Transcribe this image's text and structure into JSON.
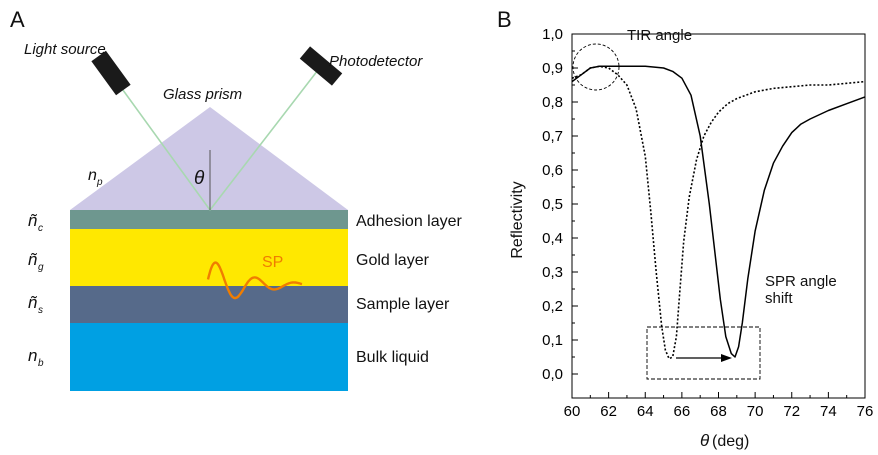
{
  "panelA": {
    "panel_label": "A",
    "light_source": "Light source",
    "photodetector": "Photodetector",
    "glass_prism": "Glass prism",
    "theta": "θ",
    "n_p": {
      "base": "n",
      "sub": "p"
    },
    "n_c": {
      "base": "ñ",
      "sub": "c"
    },
    "n_g": {
      "base": "ñ",
      "sub": "g"
    },
    "n_s": {
      "base": "ñ",
      "sub": "s"
    },
    "n_b": {
      "base": "n",
      "sub": "b"
    },
    "layers": [
      "Adhesion layer",
      "Gold layer",
      "Sample layer",
      "Bulk liquid"
    ],
    "sp": "SP",
    "colors": {
      "prism": "#cdc8e6",
      "adhesion": "#6e978f",
      "gold": "#ffe800",
      "sample": "#566a8a",
      "bulk": "#00a0e3",
      "beam": "#a8d8b0",
      "sp_wave": "#f07d00"
    }
  },
  "panelB": {
    "panel_label": "B",
    "tir_label": "TIR angle",
    "spr_label_line1": "SPR angle",
    "spr_label_line2": "shift",
    "chart_data": {
      "type": "line",
      "xlabel_symbol": "θ",
      "xlabel_unit": "(deg)",
      "ylabel": "Reflectivity",
      "xlim": [
        60,
        76
      ],
      "ylim": [
        0,
        1.0
      ],
      "x_ticks": [
        "60",
        "62",
        "64",
        "66",
        "68",
        "70",
        "72",
        "74",
        "76"
      ],
      "y_ticks": [
        "0,0",
        "0,1",
        "0,2",
        "0,3",
        "0,4",
        "0,5",
        "0,6",
        "0,7",
        "0,8",
        "0,9",
        "1,0"
      ],
      "series": [
        {
          "style": "dotted",
          "x": [
            60,
            60.5,
            61,
            61.5,
            62,
            62.5,
            63,
            63.5,
            64,
            64.3,
            64.6,
            64.9,
            65.1,
            65.3,
            65.5,
            65.7,
            65.9,
            66.1,
            66.4,
            66.8,
            67.2,
            67.6,
            68,
            68.5,
            69,
            70,
            71,
            72,
            73,
            74,
            75,
            76
          ],
          "y": [
            0.87,
            0.88,
            0.9,
            0.905,
            0.9,
            0.88,
            0.85,
            0.78,
            0.64,
            0.48,
            0.3,
            0.14,
            0.07,
            0.045,
            0.05,
            0.11,
            0.25,
            0.39,
            0.52,
            0.63,
            0.7,
            0.74,
            0.77,
            0.795,
            0.81,
            0.83,
            0.84,
            0.845,
            0.85,
            0.85,
            0.855,
            0.86
          ]
        },
        {
          "style": "solid",
          "x": [
            60,
            60.5,
            61,
            61.5,
            62,
            63,
            64,
            65,
            65.5,
            66,
            66.5,
            67,
            67.5,
            67.8,
            68.1,
            68.4,
            68.7,
            68.9,
            69.1,
            69.3,
            69.6,
            70,
            70.5,
            71,
            71.5,
            72,
            72.5,
            73,
            74,
            75,
            76
          ],
          "y": [
            0.86,
            0.88,
            0.9,
            0.905,
            0.905,
            0.905,
            0.905,
            0.9,
            0.89,
            0.87,
            0.82,
            0.7,
            0.5,
            0.36,
            0.22,
            0.11,
            0.06,
            0.05,
            0.08,
            0.15,
            0.28,
            0.42,
            0.54,
            0.62,
            0.67,
            0.71,
            0.735,
            0.75,
            0.775,
            0.795,
            0.815
          ]
        }
      ]
    }
  }
}
